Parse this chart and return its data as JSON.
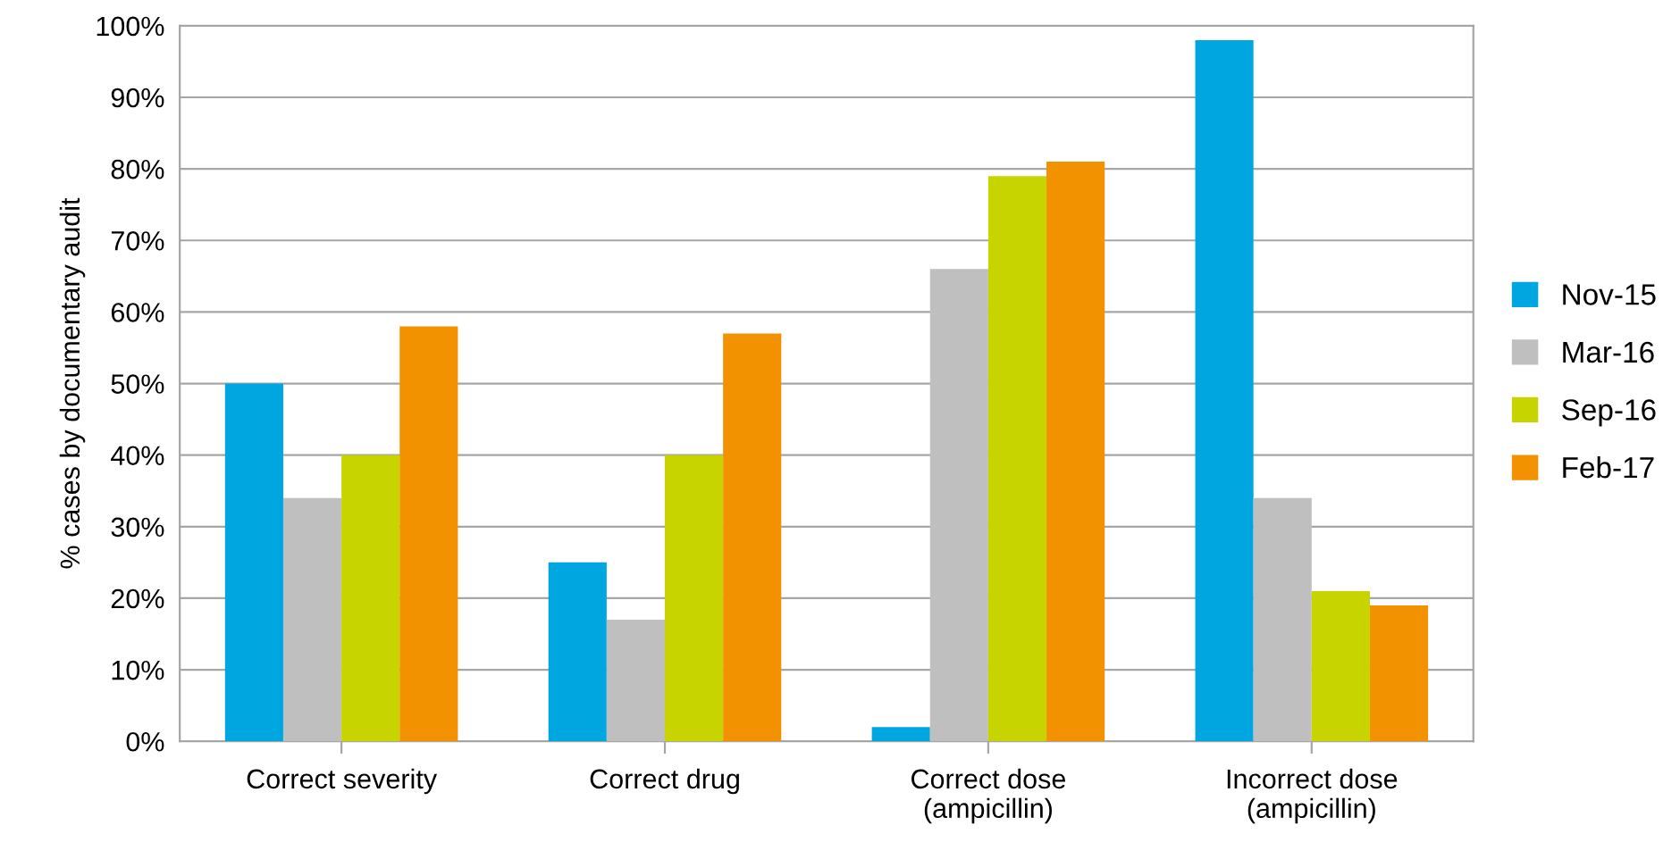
{
  "chart_data": {
    "type": "bar",
    "ylabel": "% cases by documentary audit",
    "categories": [
      "Correct severity",
      "Correct drug",
      "Correct dose\n(ampicillin)",
      "Incorrect dose\n(ampicillin)"
    ],
    "series": [
      {
        "name": "Nov-15",
        "color": "#00a6e0",
        "values": [
          50,
          25,
          2,
          98
        ]
      },
      {
        "name": "Mar-16",
        "color": "#bfbfbf",
        "values": [
          34,
          17,
          66,
          34
        ]
      },
      {
        "name": "Sep-16",
        "color": "#c8d400",
        "values": [
          40,
          40,
          79,
          21
        ]
      },
      {
        "name": "Feb-17",
        "color": "#f39200",
        "values": [
          58,
          57,
          81,
          19
        ]
      }
    ],
    "ylim": [
      0,
      100
    ],
    "yticks": [
      {
        "value": 0,
        "label": "0%"
      },
      {
        "value": 10,
        "label": "10%"
      },
      {
        "value": 20,
        "label": "20%"
      },
      {
        "value": 30,
        "label": "30%"
      },
      {
        "value": 40,
        "label": "40%"
      },
      {
        "value": 50,
        "label": "50%"
      },
      {
        "value": 60,
        "label": "60%"
      },
      {
        "value": 70,
        "label": "70%"
      },
      {
        "value": 80,
        "label": "80%"
      },
      {
        "value": 90,
        "label": "90%"
      },
      {
        "value": 100,
        "label": "100%"
      }
    ],
    "grid": "y",
    "legend": "right"
  }
}
